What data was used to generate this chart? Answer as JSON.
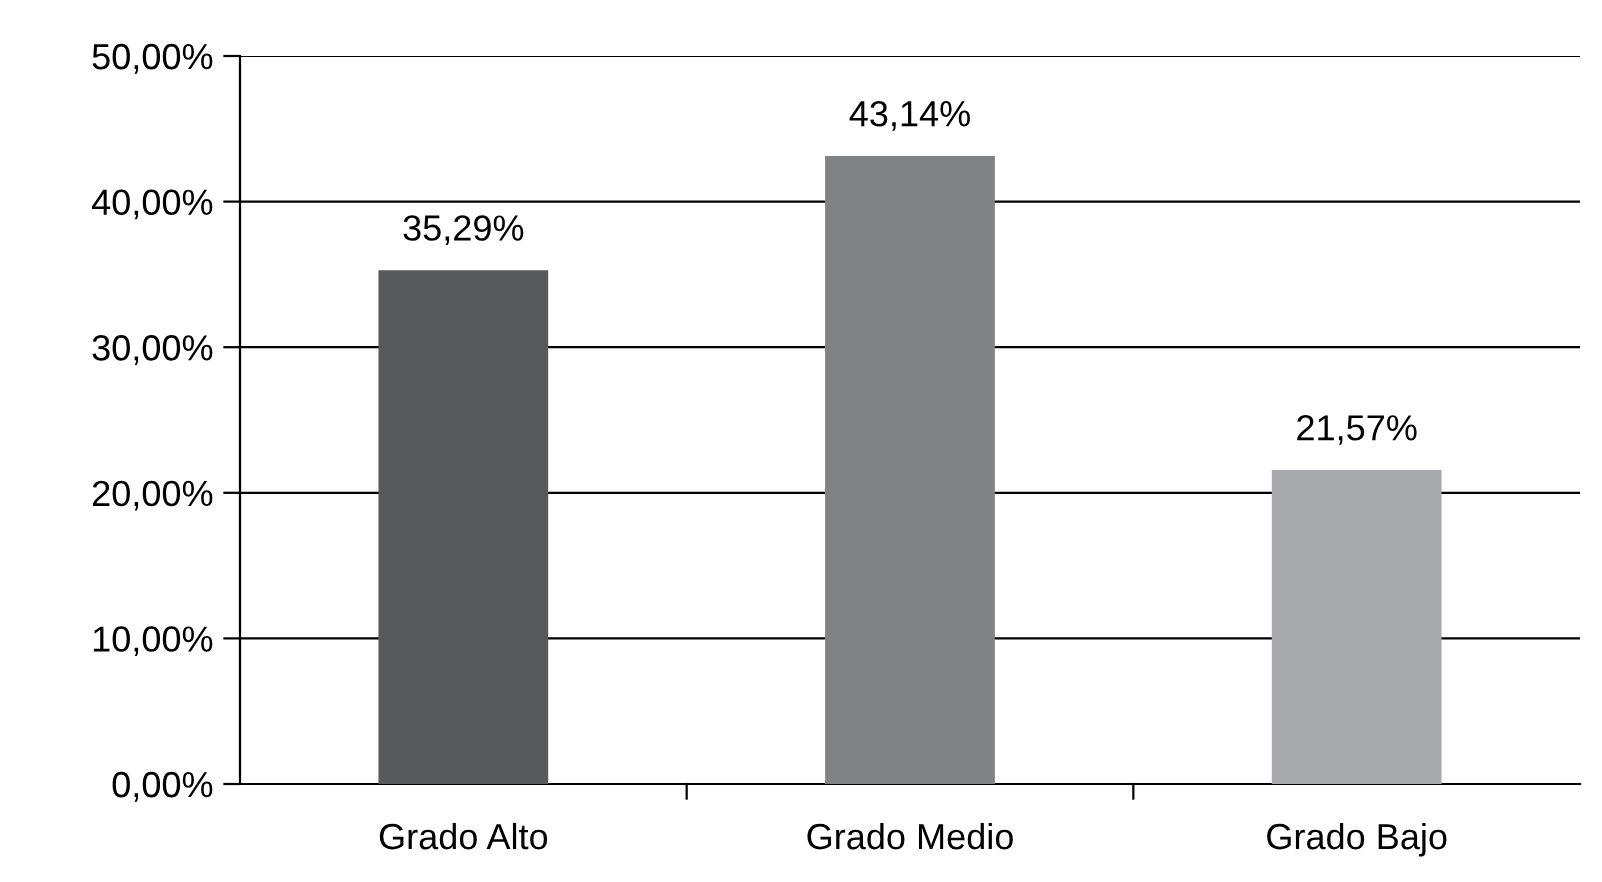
{
  "chart_data": {
    "type": "bar",
    "categories": [
      "Grado Alto",
      "Grado Medio",
      "Grado Bajo"
    ],
    "values": [
      35.29,
      43.14,
      21.57
    ],
    "colors": [
      "#58595b",
      "#808285",
      "#a7a9ac"
    ],
    "value_labels": [
      "35,29%",
      "43,14%",
      "21,57%"
    ],
    "ylim": [
      0,
      50
    ],
    "yticks": [
      {
        "value": 0,
        "label": "0,00%"
      },
      {
        "value": 10,
        "label": "10,00%"
      },
      {
        "value": 20,
        "label": "20,00%"
      },
      {
        "value": 30,
        "label": "30,00%"
      },
      {
        "value": 40,
        "label": "40,00%"
      },
      {
        "value": 50,
        "label": "50,00%"
      }
    ],
    "grid": "y",
    "legend": false
  }
}
